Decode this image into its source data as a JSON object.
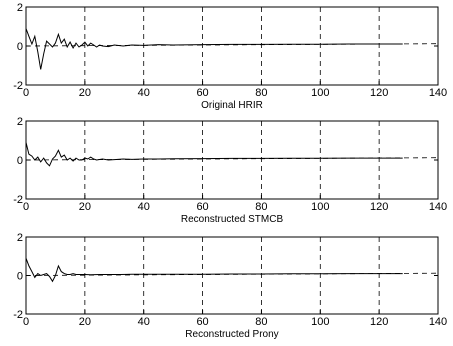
{
  "chart_data": [
    {
      "type": "line",
      "xlabel": "Original HRIR",
      "xlim": [
        0,
        140
      ],
      "ylim": [
        -2,
        2
      ],
      "xticks": [
        0,
        20,
        40,
        60,
        80,
        100,
        120,
        140
      ],
      "yticks": [
        -2,
        0,
        2
      ],
      "xtick_labels": [
        "0",
        "20",
        "40",
        "60",
        "80",
        "100",
        "120",
        "140"
      ],
      "ytick_labels": [
        "-2",
        "0",
        "2"
      ],
      "grid": "vertical dashed",
      "series": [
        {
          "x": [
            0,
            1,
            2,
            3,
            4,
            5,
            6,
            7,
            8,
            9,
            10,
            11,
            12,
            13,
            14,
            15,
            16,
            17,
            18,
            19,
            20,
            21,
            22,
            23,
            24,
            25,
            26,
            28,
            30,
            33,
            36,
            40,
            45,
            50,
            60,
            70,
            80,
            90,
            100,
            110,
            120,
            128
          ],
          "y": [
            0.9,
            0.5,
            0.1,
            0.5,
            -0.3,
            -1.2,
            -0.4,
            0.25,
            0.1,
            -0.05,
            0.15,
            0.6,
            0.15,
            0.35,
            -0.05,
            0.2,
            -0.1,
            0.15,
            -0.05,
            0.05,
            0.2,
            0.0,
            0.15,
            0.05,
            -0.05,
            0.05,
            0.0,
            -0.03,
            0.05,
            0.0,
            0.05,
            0.03,
            0.07,
            0.05,
            0.07,
            0.08,
            0.08,
            0.09,
            0.09,
            0.1,
            0.1,
            0.1
          ]
        },
        {
          "x": [
            0,
            140
          ],
          "y": [
            0,
            0.12
          ]
        }
      ]
    },
    {
      "type": "line",
      "xlabel": "Reconstructed STMCB",
      "xlim": [
        0,
        140
      ],
      "ylim": [
        -2,
        2
      ],
      "xticks": [
        0,
        20,
        40,
        60,
        80,
        100,
        120,
        140
      ],
      "yticks": [
        -2,
        0,
        2
      ],
      "xtick_labels": [
        "0",
        "20",
        "40",
        "60",
        "80",
        "100",
        "120",
        "140"
      ],
      "ytick_labels": [
        "-2",
        "0",
        "2"
      ],
      "grid": "vertical dashed",
      "series": [
        {
          "x": [
            0,
            1,
            2,
            3,
            4,
            5,
            6,
            7,
            8,
            9,
            10,
            11,
            12,
            13,
            14,
            15,
            16,
            17,
            18,
            19,
            20,
            21,
            22,
            23,
            24,
            26,
            28,
            30,
            33,
            36,
            40,
            45,
            50,
            60,
            70,
            80,
            90,
            100,
            110,
            120,
            128
          ],
          "y": [
            0.9,
            0.3,
            0.2,
            0.0,
            0.15,
            -0.1,
            0.1,
            -0.15,
            -0.3,
            0.05,
            0.2,
            0.5,
            0.15,
            0.25,
            0.0,
            0.1,
            -0.05,
            0.1,
            0.0,
            0.0,
            0.1,
            0.05,
            0.15,
            0.05,
            0.0,
            0.05,
            0.0,
            0.02,
            0.05,
            0.03,
            0.05,
            0.05,
            0.06,
            0.07,
            0.08,
            0.08,
            0.09,
            0.09,
            0.1,
            0.1,
            0.1
          ]
        },
        {
          "x": [
            0,
            140
          ],
          "y": [
            0,
            0.12
          ]
        }
      ]
    },
    {
      "type": "line",
      "xlabel": "Reconstructed Prony",
      "xlim": [
        0,
        140
      ],
      "ylim": [
        -2,
        2
      ],
      "xticks": [
        0,
        20,
        40,
        60,
        80,
        100,
        120,
        140
      ],
      "yticks": [
        -2,
        0,
        2
      ],
      "xtick_labels": [
        "0",
        "20",
        "40",
        "60",
        "80",
        "100",
        "120",
        "140"
      ],
      "ytick_labels": [
        "-2",
        "0",
        "2"
      ],
      "grid": "vertical dashed",
      "series": [
        {
          "x": [
            0,
            1,
            2,
            3,
            4,
            5,
            6,
            7,
            8,
            9,
            10,
            11,
            12,
            13,
            14,
            15,
            16,
            17,
            18,
            20,
            22,
            25,
            28,
            32,
            36,
            40,
            45,
            50,
            60,
            70,
            80,
            90,
            100,
            110,
            120,
            128
          ],
          "y": [
            0.9,
            0.5,
            0.2,
            -0.1,
            0.1,
            0.0,
            0.05,
            0.1,
            -0.05,
            -0.3,
            0.0,
            0.5,
            0.2,
            0.1,
            0.05,
            0.05,
            0.1,
            0.05,
            0.05,
            0.05,
            0.04,
            0.05,
            0.05,
            0.05,
            0.06,
            0.06,
            0.06,
            0.07,
            0.07,
            0.08,
            0.08,
            0.09,
            0.09,
            0.1,
            0.1,
            0.1
          ]
        },
        {
          "x": [
            0,
            140
          ],
          "y": [
            0,
            0.12
          ]
        }
      ]
    }
  ]
}
